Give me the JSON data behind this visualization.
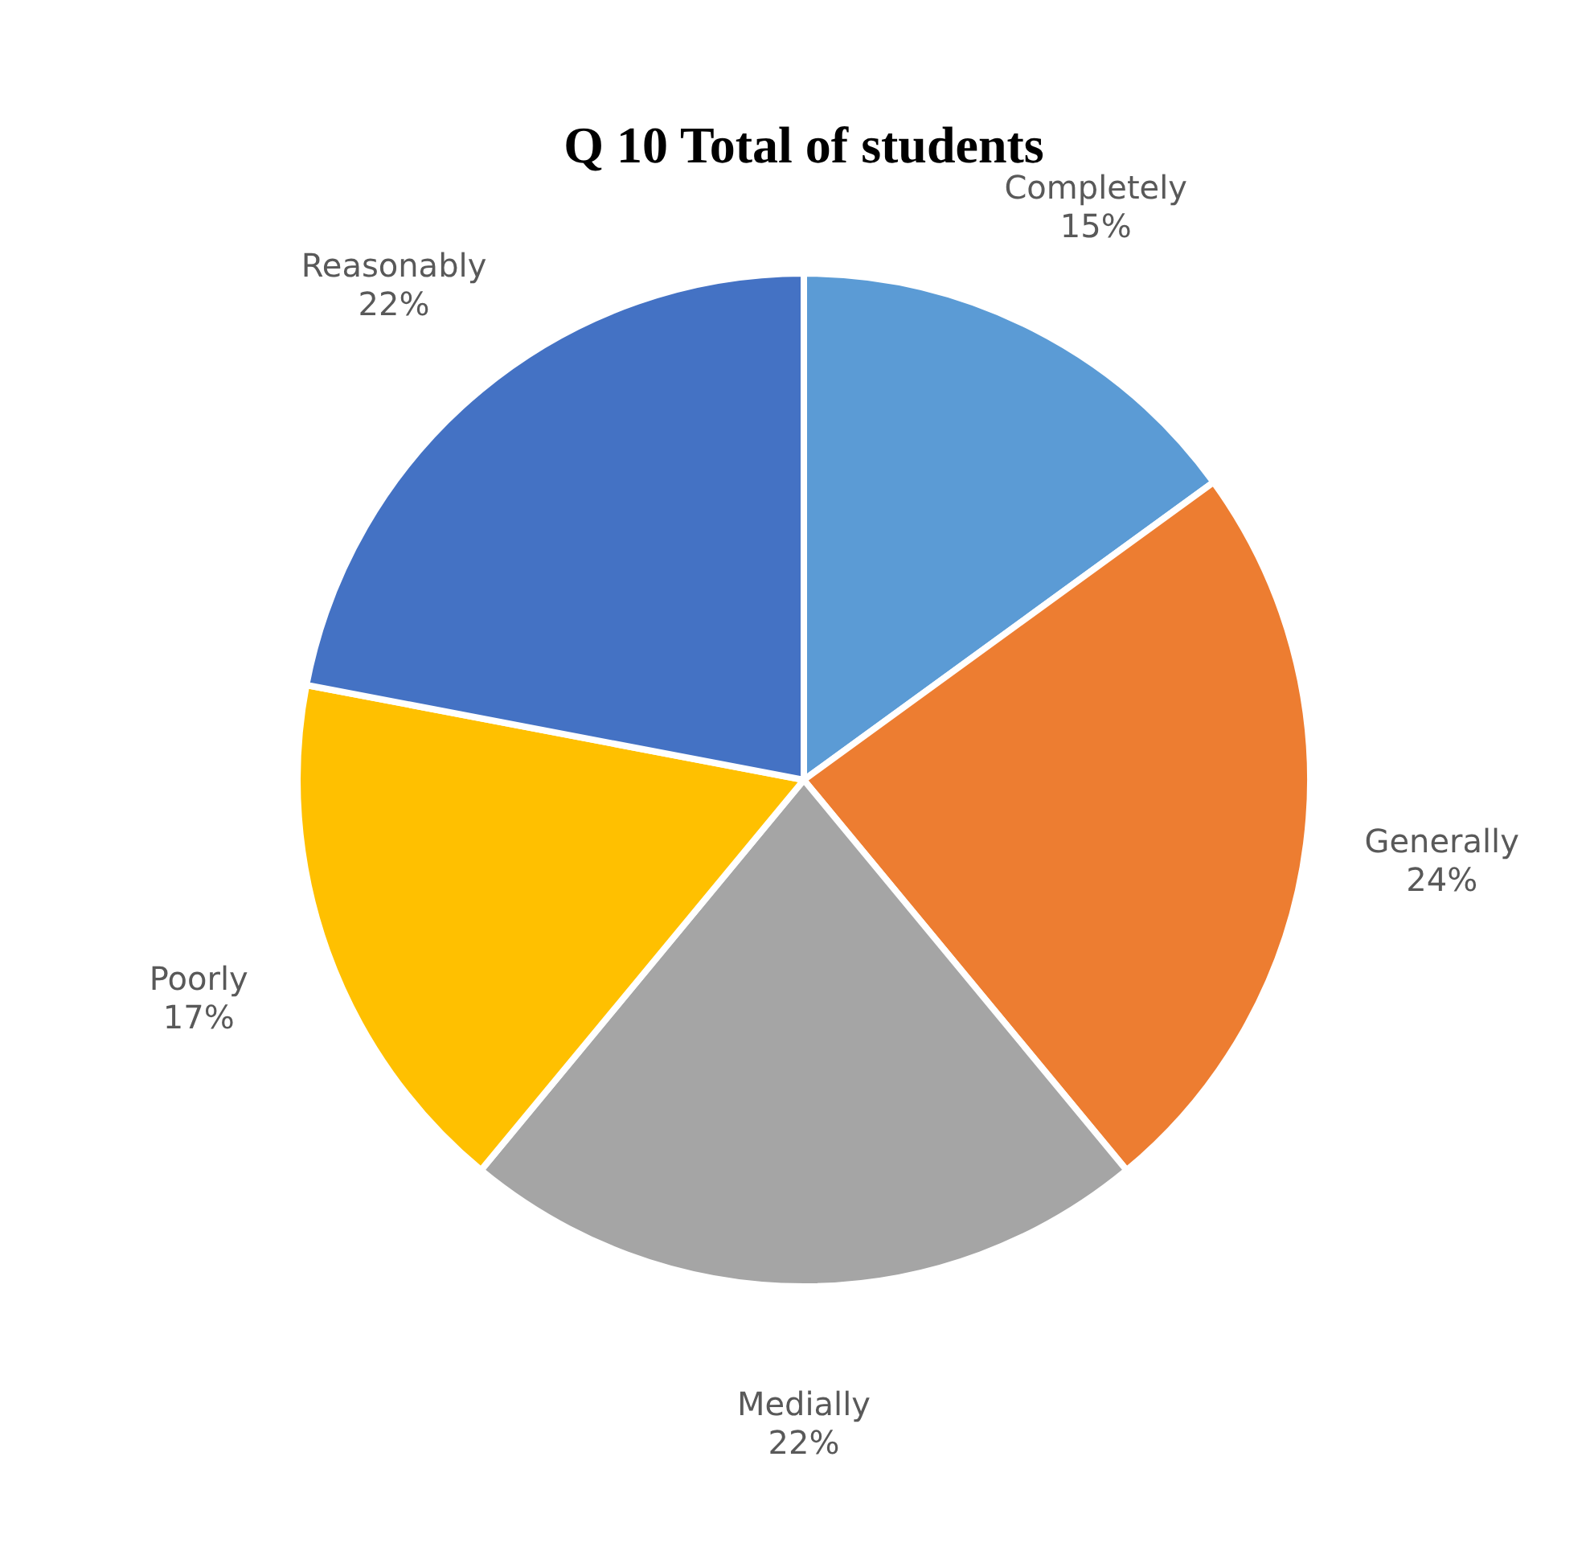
{
  "chart_data": {
    "type": "pie",
    "title": "Q 10 Total of students",
    "categories": [
      "Completely",
      "Generally",
      "Medially",
      "Poorly",
      "Reasonably"
    ],
    "values": [
      15,
      24,
      22,
      17,
      22
    ],
    "value_labels": [
      "15%",
      "24%",
      "22%",
      "17%",
      "22%"
    ],
    "colors": [
      "#5b9bd5",
      "#ed7d31",
      "#a5a5a5",
      "#ffc000",
      "#4472c4"
    ]
  }
}
